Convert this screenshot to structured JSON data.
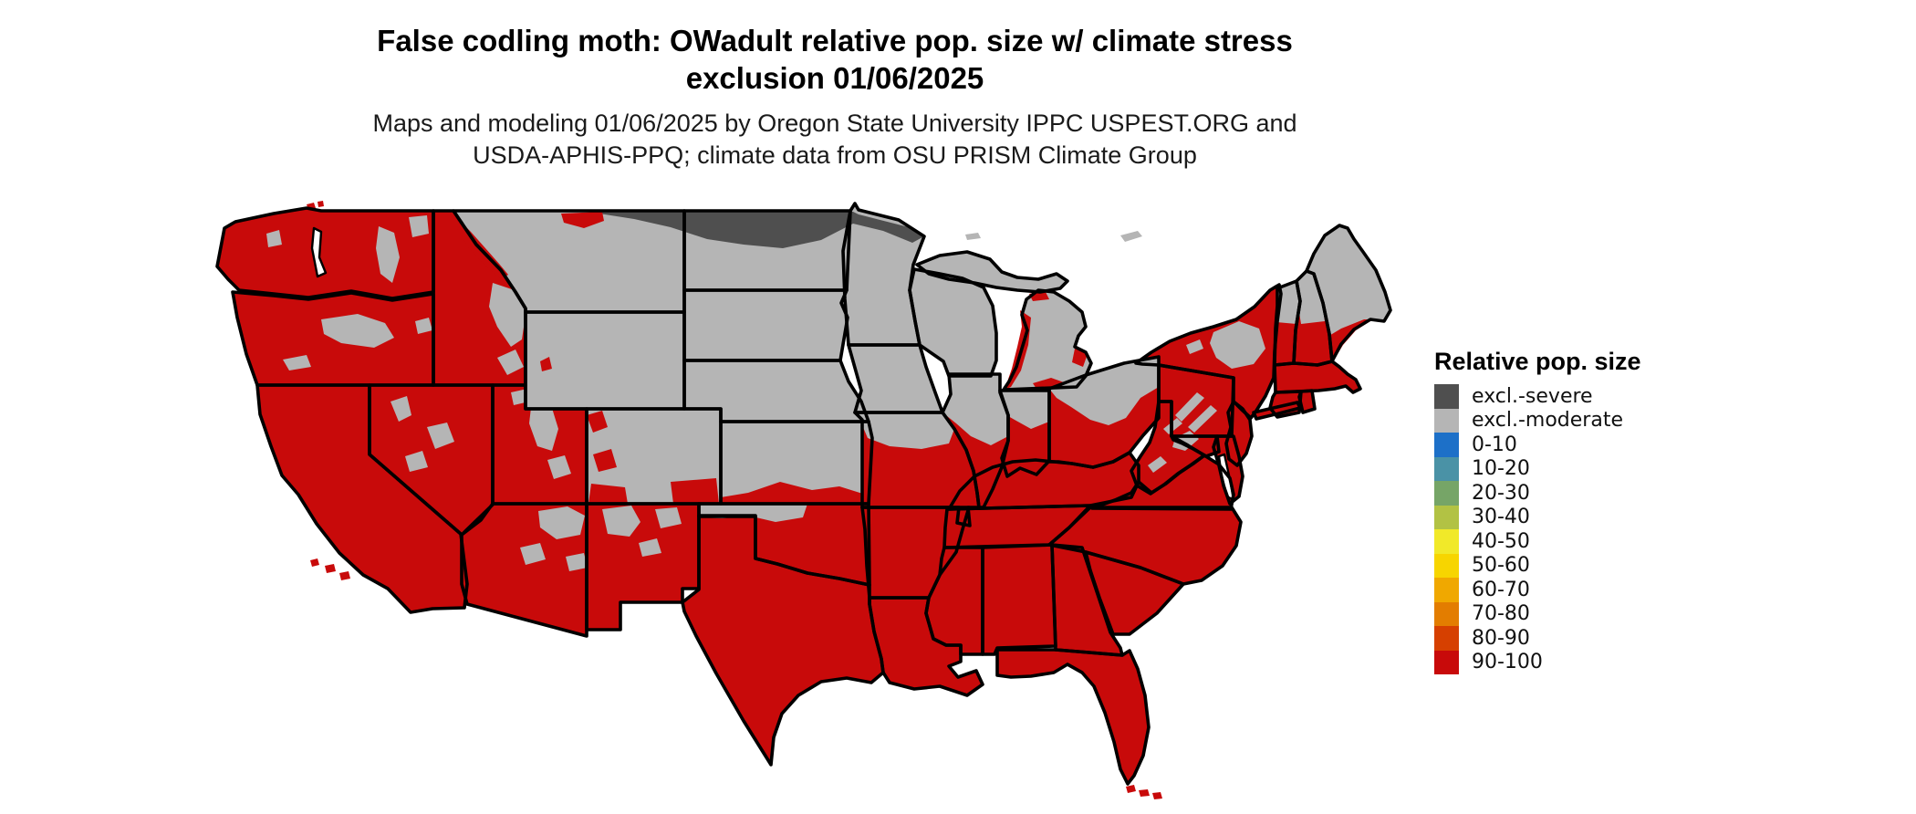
{
  "header": {
    "title_line1": "False codling moth: OWadult relative pop. size w/ climate stress",
    "title_line2": "exclusion 01/06/2025",
    "subtitle_line1": "Maps and modeling 01/06/2025 by Oregon State University IPPC USPEST.ORG and",
    "subtitle_line2": "USDA-APHIS-PPQ; climate data from OSU PRISM Climate Group"
  },
  "legend": {
    "title": "Relative pop. size",
    "items": [
      {
        "label": "excl.-severe",
        "color": "#4f4f4f"
      },
      {
        "label": "excl.-moderate",
        "color": "#b5b5b5"
      },
      {
        "label": "0-10",
        "color": "#1d70c8"
      },
      {
        "label": "10-20",
        "color": "#4a92a6"
      },
      {
        "label": "20-30",
        "color": "#76a567"
      },
      {
        "label": "30-40",
        "color": "#b2c244"
      },
      {
        "label": "40-50",
        "color": "#f1e929"
      },
      {
        "label": "50-60",
        "color": "#f7d500"
      },
      {
        "label": "60-70",
        "color": "#f0a800"
      },
      {
        "label": "70-80",
        "color": "#e37d00"
      },
      {
        "label": "80-90",
        "color": "#d64000"
      },
      {
        "label": "90-100",
        "color": "#c80a0a"
      }
    ]
  },
  "map": {
    "border_color": "#000000",
    "category_colors": {
      "excl-severe": "#4f4f4f",
      "excl-moderate": "#b5b5b5",
      "0-10": "#1d70c8",
      "10-20": "#4a92a6",
      "20-30": "#76a567",
      "30-40": "#b2c244",
      "40-50": "#f1e929",
      "50-60": "#f7d500",
      "60-70": "#f0a800",
      "70-80": "#e37d00",
      "80-90": "#d64000",
      "90-100": "#c80a0a"
    },
    "regions": {
      "WA": "90-100",
      "OR": "90-100",
      "CA": "90-100",
      "NV": "90-100",
      "ID": "90-100",
      "UT": "90-100",
      "AZ": "90-100",
      "NM": "90-100",
      "TX": "90-100",
      "OK": "90-100",
      "MT": "excl-moderate",
      "WY": "excl-moderate",
      "CO": "excl-moderate",
      "ND": "excl-moderate",
      "SD": "excl-moderate",
      "NE": "excl-moderate",
      "KS": "excl-moderate",
      "MN": "excl-moderate",
      "IA": "excl-moderate",
      "WI": "excl-moderate",
      "MI_UPPER": "excl-moderate",
      "MI_LOWER": "excl-moderate",
      "MO": "90-100",
      "AR": "90-100",
      "LA": "90-100",
      "MS": "90-100",
      "AL": "90-100",
      "TN": "90-100",
      "KY": "90-100",
      "GA": "90-100",
      "FL": "90-100",
      "SC": "90-100",
      "NC": "90-100",
      "VA": "90-100",
      "WV": "90-100",
      "MD": "90-100",
      "DELMARVA": "90-100",
      "NJ": "90-100",
      "PA": "90-100",
      "NY": "90-100",
      "LONG_ISLAND": "90-100",
      "IL": "90-100",
      "IN": "90-100",
      "OH": "90-100",
      "VT": "90-100",
      "NH": "90-100",
      "ME": "excl-moderate",
      "CT": "90-100",
      "RI": "90-100",
      "MA": "90-100"
    }
  }
}
